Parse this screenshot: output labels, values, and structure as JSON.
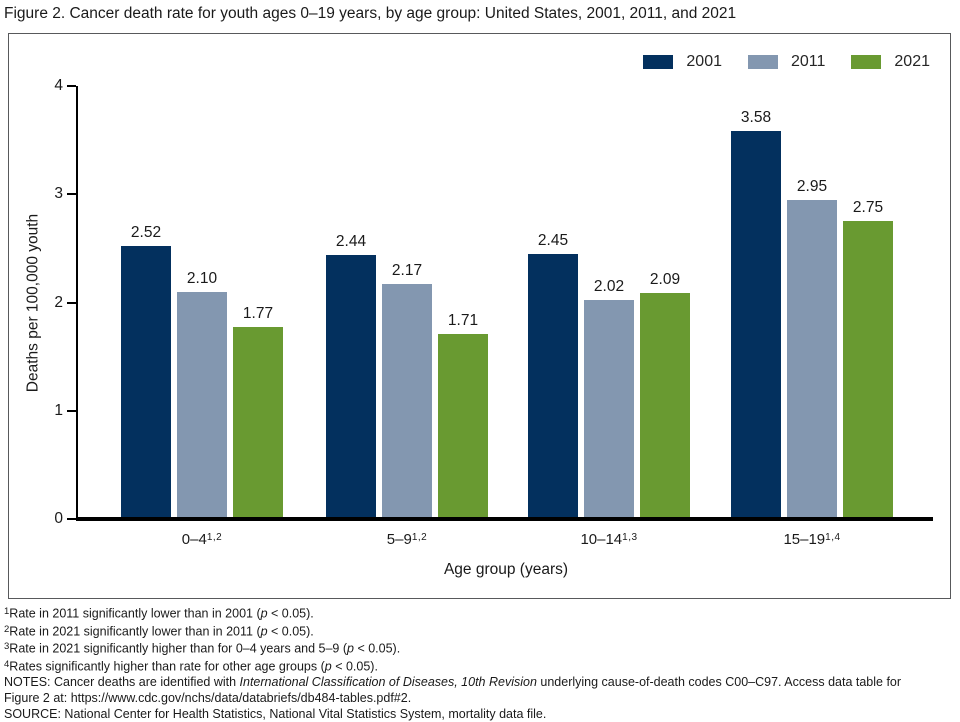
{
  "page": {
    "title": "Figure 2. Cancer death rate for youth ages 0–19 years, by age group: United States, 2001, 2011, and 2021"
  },
  "chart_data": {
    "type": "bar",
    "title": "Cancer death rate for youth ages 0–19 years, by age group: United States, 2001, 2011, and 2021",
    "categories": [
      {
        "label": "0–4",
        "sup": "1,2"
      },
      {
        "label": "5–9",
        "sup": "1,2"
      },
      {
        "label": "10–14",
        "sup": "1,3"
      },
      {
        "label": "15–19",
        "sup": "1,4"
      }
    ],
    "series": [
      {
        "name": "2001",
        "color": "#03305E",
        "values": [
          2.52,
          2.44,
          2.45,
          3.58
        ],
        "labels": [
          "2.52",
          "2.44",
          "2.45",
          "3.58"
        ]
      },
      {
        "name": "2011",
        "color": "#8397B0",
        "values": [
          2.1,
          2.17,
          2.02,
          2.95
        ],
        "labels": [
          "2.10",
          "2.17",
          "2.02",
          "2.95"
        ]
      },
      {
        "name": "2021",
        "color": "#699A31",
        "values": [
          1.77,
          1.71,
          2.09,
          2.75
        ],
        "labels": [
          "1.77",
          "1.71",
          "2.09",
          "2.75"
        ]
      }
    ],
    "xlabel": "Age group (years)",
    "ylabel": "Deaths per 100,000 youth",
    "ylim": [
      0,
      4
    ],
    "yticks": [
      0,
      1,
      2,
      3,
      4
    ],
    "grid": false,
    "legend_position": "top-right"
  },
  "footnotes": [
    [
      {
        "t": "1",
        "sup": true
      },
      {
        "t": "Rate in 2011 significantly lower than in 2001 ("
      },
      {
        "t": "p",
        "i": true
      },
      {
        "t": " < 0.05)."
      }
    ],
    [
      {
        "t": "2",
        "sup": true
      },
      {
        "t": "Rate in 2021 significantly lower than in 2011 ("
      },
      {
        "t": "p",
        "i": true
      },
      {
        "t": " < 0.05)."
      }
    ],
    [
      {
        "t": "3",
        "sup": true
      },
      {
        "t": "Rate in 2021 significantly higher than for 0–4 years and 5–9 ("
      },
      {
        "t": "p",
        "i": true
      },
      {
        "t": " < 0.05)."
      }
    ],
    [
      {
        "t": "4",
        "sup": true
      },
      {
        "t": "Rates significantly higher than rate for other age groups ("
      },
      {
        "t": "p",
        "i": true
      },
      {
        "t": " < 0.05)."
      }
    ],
    [
      {
        "t": "NOTES: Cancer deaths are identified with "
      },
      {
        "t": "International Classification of Diseases, 10th Revision",
        "i": true
      },
      {
        "t": " underlying cause-of-death codes C00–C97. Access data table for"
      }
    ],
    [
      {
        "t": "Figure 2 at: https://www.cdc.gov/nchs/data/databriefs/db484-tables.pdf#2."
      }
    ],
    [
      {
        "t": "SOURCE: National Center for Health Statistics, National Vital Statistics System, mortality data file."
      }
    ]
  ]
}
